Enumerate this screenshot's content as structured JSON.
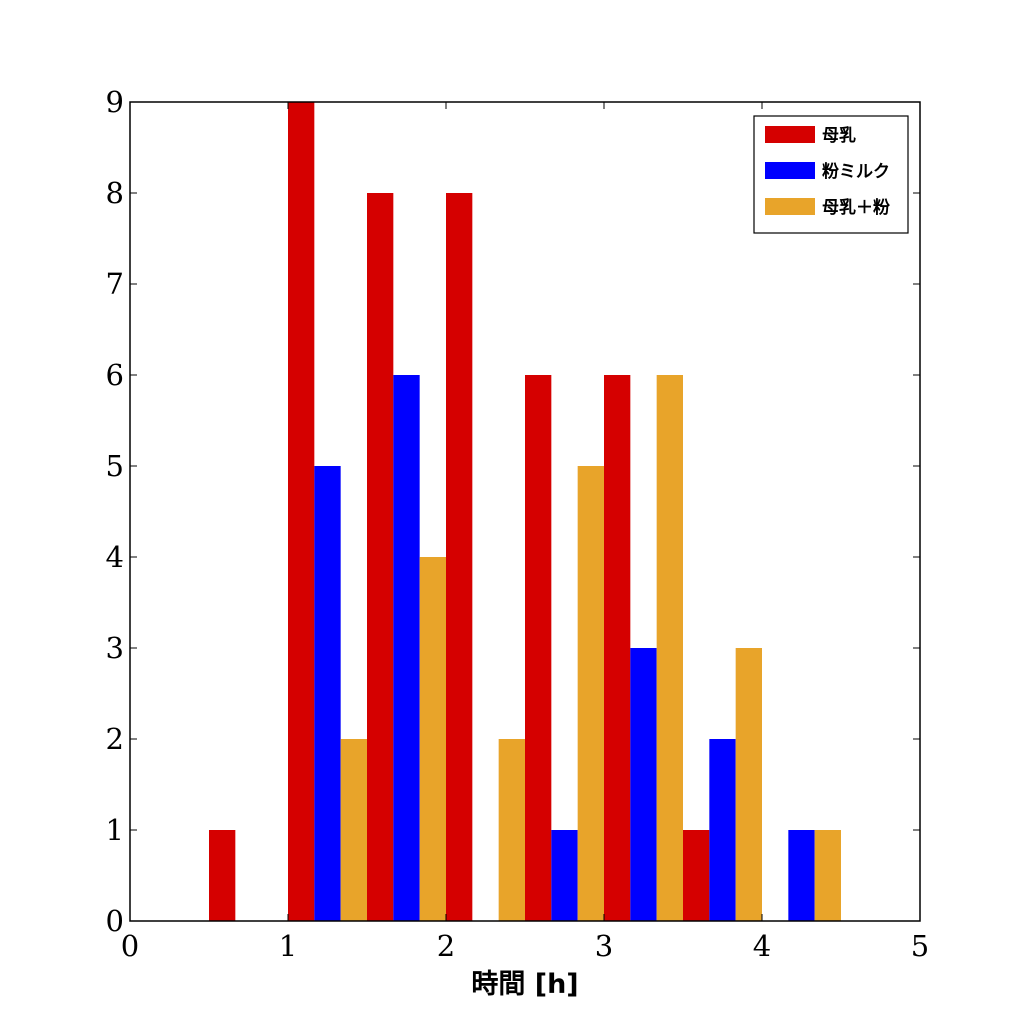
{
  "chart_data": {
    "type": "bar",
    "title": "",
    "xlabel": "時間 [h]",
    "ylabel": "",
    "xlim": [
      0,
      5
    ],
    "ylim": [
      0,
      9
    ],
    "xticks": [
      0,
      1,
      2,
      3,
      4,
      5
    ],
    "yticks": [
      0,
      1,
      2,
      3,
      4,
      5,
      6,
      7,
      8,
      9
    ],
    "grid": false,
    "legend_position": "top-right",
    "bin_edges": [
      0.5,
      1.0,
      1.5,
      2.0,
      2.5,
      3.0,
      3.5,
      4.0,
      4.5
    ],
    "series": [
      {
        "name": "母乳",
        "color": "#d50000",
        "values": [
          1,
          9,
          8,
          8,
          6,
          6,
          1,
          0
        ]
      },
      {
        "name": "粉ミルク",
        "color": "#0000ff",
        "values": [
          0,
          5,
          6,
          0,
          1,
          3,
          2,
          1
        ]
      },
      {
        "name": "母乳＋粉",
        "color": "#e8a42a",
        "values": [
          0,
          2,
          4,
          2,
          5,
          6,
          3,
          1
        ]
      }
    ]
  }
}
